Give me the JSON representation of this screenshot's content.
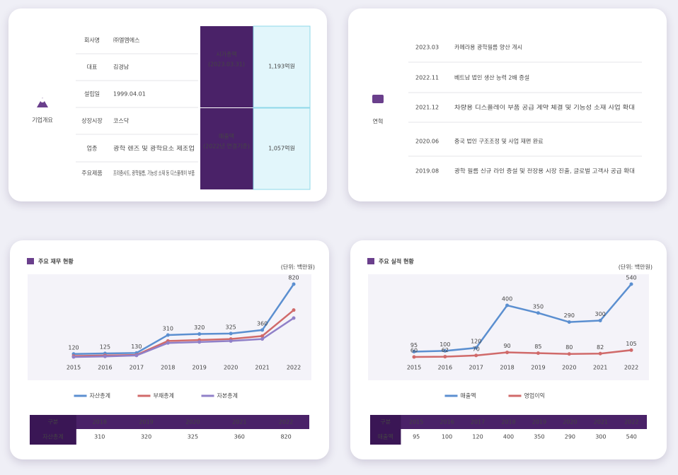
{
  "overview": {
    "title": "기업개요",
    "rows": [
      {
        "label": "회사명",
        "value": "㈜엘엠에스"
      },
      {
        "label": "대표",
        "value": "김경남"
      },
      {
        "label": "설립일",
        "value": "1999.04.01"
      },
      {
        "label": "상장시장",
        "value": "코스닥"
      },
      {
        "label": "업종",
        "value": "광학 렌즈 및 광학요소 제조업"
      },
      {
        "label": "주요제품",
        "value": "프리즘시트, 광학필름, 기능성 소재 등 디스플레이 부품"
      }
    ],
    "highlights": [
      {
        "label": "시가총액",
        "note": "(2023.03.31)",
        "value": "1,193억원"
      },
      {
        "label": "매출액",
        "note": "(2022년 연결기준)",
        "value": "1,057억원"
      }
    ]
  },
  "history": {
    "title": "연혁",
    "rows": [
      {
        "date": "2023.03",
        "text": "카메라용 광학필름 양산 개시"
      },
      {
        "date": "2022.11",
        "text": "베트남 법인 생산 능력 2배 증설"
      },
      {
        "date": "2021.12",
        "text": "차량용 디스플레이 부품 공급 계약 체결 및 기능성 소재 사업 확대"
      },
      {
        "date": "2020.06",
        "text": "중국 법인 구조조정 및 사업 재편 완료"
      },
      {
        "date": "2019.08",
        "text": "광학 필름 신규 라인 증설 및 전장용 시장 진출, 글로벌 고객사 공급 확대"
      }
    ]
  },
  "chart_data": [
    {
      "type": "line",
      "title": "주요 재무 현황",
      "unit": "(단위: 백만원)",
      "categories": [
        "2015",
        "2016",
        "2017",
        "2018",
        "2019",
        "2020",
        "2021",
        "2022"
      ],
      "series": [
        {
          "name": "자산총계",
          "color": "#5b8fd0",
          "labels": true,
          "values": [
            120,
            125,
            130,
            310,
            320,
            325,
            360,
            820
          ]
        },
        {
          "name": "부채총계",
          "color": "#d06a6a",
          "labels": false,
          "values": [
            100,
            105,
            110,
            250,
            260,
            270,
            300,
            560
          ]
        },
        {
          "name": "자본총계",
          "color": "#9080c8",
          "labels": false,
          "values": [
            90,
            95,
            105,
            230,
            240,
            250,
            270,
            480
          ]
        }
      ],
      "table": {
        "header": [
          "구분",
          "2018",
          "2019",
          "2020",
          "2021",
          "2022"
        ],
        "rows": [
          [
            "자산총계",
            "310",
            "320",
            "325",
            "360",
            "820"
          ]
        ]
      }
    },
    {
      "type": "line",
      "title": "주요 실적 현황",
      "unit": "(단위: 백만원)",
      "categories": [
        "2015",
        "2016",
        "2017",
        "2018",
        "2019",
        "2020",
        "2021",
        "2022"
      ],
      "series": [
        {
          "name": "매출액",
          "color": "#5b8fd0",
          "labels": true,
          "values": [
            95,
            100,
            120,
            400,
            350,
            290,
            300,
            540
          ]
        },
        {
          "name": "영업이익",
          "color": "#d06a6a",
          "labels": true,
          "values": [
            60,
            62,
            70,
            90,
            85,
            80,
            82,
            105
          ]
        }
      ],
      "table": {
        "header": [
          "구분",
          "2015",
          "2016",
          "2017",
          "2018",
          "2019",
          "2020",
          "2021",
          "2022"
        ],
        "rows": [
          [
            "매출액",
            "95",
            "100",
            "120",
            "400",
            "350",
            "290",
            "300",
            "540"
          ]
        ]
      }
    }
  ]
}
